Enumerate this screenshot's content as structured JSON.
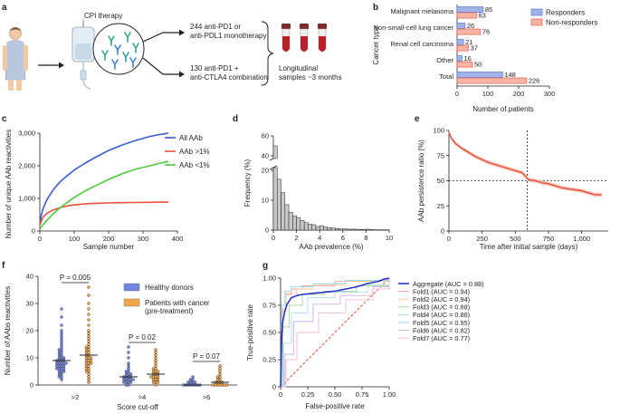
{
  "panel_a": {
    "letter": "a",
    "therapy": "CPI therapy",
    "arm1_line1": "244 anti-PD1 or",
    "arm1_line2": "anti-PDL1 monotherapy",
    "arm2_line1": "130 anti-PD1 +",
    "arm2_line2": "anti-CTLA4 combination",
    "samples_line1": "Longitudinal",
    "samples_line2": "samples ~3 months"
  },
  "colors": {
    "responders": "#9fb3e8",
    "responders_edge": "#5b7bd5",
    "nonresponders": "#f6b4a4",
    "nonresponders_edge": "#e8604c",
    "all_aab": "#3a5bd9",
    "aab_gt1": "#e8503a",
    "aab_lt1": "#4ccc3a",
    "healthy": "#6f86e0",
    "cancer": "#f3a646",
    "aggregate": "#2b34c8"
  },
  "chart_data": [
    {
      "id": "b",
      "letter": "b",
      "type": "bar",
      "categories": [
        "Malignant melanoma",
        "Non-small-cell lung cancer",
        "Renal cell carcinoma",
        "Other",
        "Total"
      ],
      "series": [
        {
          "name": "Responders",
          "values": [
            85,
            26,
            21,
            16,
            148
          ]
        },
        {
          "name": "Non-responders",
          "values": [
            63,
            76,
            37,
            50,
            226
          ]
        }
      ],
      "xlabel": "Number of patients",
      "ylabel": "Cancer type",
      "xlim": [
        0,
        300
      ],
      "xticks": [
        "0",
        "100",
        "200",
        "300"
      ],
      "legend": "top-right"
    },
    {
      "id": "c",
      "letter": "c",
      "type": "line",
      "xlabel": "Sample number",
      "ylabel": "Number of unique AAb reactivities",
      "xlim": [
        0,
        400
      ],
      "ylim": [
        0,
        3000
      ],
      "xticks": [
        "0",
        "100",
        "200",
        "300",
        "400"
      ],
      "yticks": [
        "0",
        "1,000",
        "2,000",
        "3,000"
      ],
      "series": [
        {
          "name": "All AAb",
          "x": [
            1,
            5,
            10,
            20,
            40,
            60,
            80,
            100,
            130,
            160,
            200,
            240,
            280,
            320,
            350,
            374
          ],
          "y": [
            300,
            520,
            700,
            950,
            1280,
            1520,
            1700,
            1870,
            2070,
            2250,
            2470,
            2640,
            2780,
            2900,
            2960,
            3000
          ]
        },
        {
          "name": "AAb >1%",
          "x": [
            1,
            5,
            10,
            20,
            40,
            60,
            80,
            100,
            130,
            160,
            200,
            240,
            280,
            320,
            374
          ],
          "y": [
            200,
            330,
            430,
            540,
            650,
            720,
            770,
            800,
            830,
            850,
            860,
            870,
            875,
            880,
            885
          ]
        },
        {
          "name": "AAb <1%",
          "x": [
            1,
            10,
            20,
            40,
            60,
            80,
            100,
            130,
            160,
            200,
            240,
            280,
            320,
            350,
            374
          ],
          "y": [
            80,
            200,
            320,
            540,
            720,
            880,
            1030,
            1220,
            1380,
            1580,
            1760,
            1900,
            2000,
            2080,
            2130
          ]
        }
      ],
      "legend": "top-right"
    },
    {
      "id": "d",
      "letter": "d",
      "type": "bar",
      "xlabel": "AAb prevalence (%)",
      "ylabel": "Frequency (%)",
      "xlim": [
        0,
        10
      ],
      "ylim_lower": [
        0,
        20
      ],
      "ylim_upper": [
        40,
        60
      ],
      "xticks": [
        "0",
        "2",
        "4",
        "6",
        "8",
        "10"
      ],
      "yticks_lower": [
        "0",
        "10",
        "20"
      ],
      "yticks_upper": [
        "40",
        "60"
      ],
      "bins": [
        0,
        0.33,
        0.67,
        1.0,
        1.33,
        1.67,
        2.0,
        2.33,
        2.67,
        3.0,
        3.33,
        3.67,
        4.0,
        4.33,
        4.67,
        5.0,
        5.33,
        5.67,
        6.0,
        6.33,
        6.67,
        7.0,
        7.33,
        7.67,
        8.0,
        8.33,
        8.67,
        9.0,
        9.33,
        9.67
      ],
      "values": [
        50,
        17,
        12.5,
        8.5,
        6,
        4.8,
        4.2,
        3.2,
        2.5,
        2,
        1.8,
        1.2,
        1.5,
        1,
        0.8,
        0.7,
        0.5,
        0.4,
        0.4,
        0.3,
        0.3,
        0.3,
        0.2,
        0.2,
        0.3,
        0.2,
        0.1,
        0.1,
        0.1,
        0.1
      ]
    },
    {
      "id": "e",
      "letter": "e",
      "type": "line",
      "xlabel": "Time after initial sample (days)",
      "ylabel": "AAb persistence ratio (%)",
      "xlim": [
        0,
        1200
      ],
      "ylim": [
        0,
        100
      ],
      "xticks": [
        "0",
        "250",
        "500",
        "750",
        "1,000"
      ],
      "yticks": [
        "0",
        "25",
        "50",
        "75",
        "100"
      ],
      "vline": 590,
      "hline": 50,
      "series": [
        {
          "name": "",
          "x": [
            0,
            20,
            50,
            100,
            150,
            200,
            250,
            300,
            350,
            400,
            450,
            500,
            550,
            580,
            600,
            650,
            700,
            750,
            800,
            850,
            900,
            950,
            1000,
            1050,
            1100,
            1150
          ],
          "y": [
            98,
            92,
            87,
            82,
            78,
            74,
            71,
            68,
            66,
            64,
            62,
            60,
            58,
            54,
            51,
            50,
            48,
            47,
            45,
            43,
            42,
            41,
            40,
            38,
            36,
            36
          ]
        }
      ]
    },
    {
      "id": "f",
      "letter": "f",
      "type": "scatter",
      "xlabel": "Score cut-off",
      "ylabel": "Number of AAbs reactivities",
      "ylim": [
        0,
        40
      ],
      "yticks": [
        "0",
        "10",
        "20",
        "30",
        "40"
      ],
      "categories": [
        ">2",
        ">4",
        ">6"
      ],
      "series": [
        {
          "name": "Healthy donors",
          "values": [
            [
              2,
              3,
              3,
              4,
              4,
              5,
              5,
              5,
              6,
              6,
              6,
              6,
              7,
              7,
              7,
              7,
              8,
              8,
              8,
              8,
              8,
              9,
              9,
              9,
              9,
              10,
              10,
              10,
              11,
              11,
              12,
              12,
              13,
              13,
              14,
              15,
              16,
              17,
              18,
              19,
              20,
              22,
              25,
              28
            ],
            [
              0,
              0,
              1,
              1,
              1,
              1,
              2,
              2,
              2,
              2,
              2,
              3,
              3,
              3,
              3,
              4,
              4,
              4,
              5,
              5,
              6,
              7,
              8,
              10,
              12,
              14
            ],
            [
              0,
              0,
              0,
              0,
              0,
              0,
              0,
              0,
              1,
              1,
              1,
              1,
              2,
              2,
              3
            ]
          ]
        },
        {
          "name": "Patients with cancer\n(pre-treatment)",
          "values": [
            [
              1,
              2,
              3,
              4,
              5,
              5,
              6,
              6,
              7,
              7,
              8,
              8,
              8,
              9,
              9,
              9,
              10,
              10,
              10,
              11,
              11,
              12,
              12,
              13,
              13,
              14,
              14,
              15,
              16,
              17,
              18,
              19,
              20,
              22,
              24,
              26,
              28,
              30,
              33,
              36
            ],
            [
              0,
              1,
              1,
              1,
              2,
              2,
              2,
              3,
              3,
              3,
              3,
              4,
              4,
              4,
              5,
              5,
              5,
              6,
              6,
              7,
              8,
              9,
              10,
              11,
              12,
              13
            ],
            [
              0,
              0,
              0,
              0,
              0,
              0,
              0,
              1,
              1,
              1,
              1,
              2,
              2,
              3,
              3,
              4,
              5,
              6,
              7
            ]
          ]
        }
      ],
      "pvalues": [
        "P = 0.005",
        "P = 0.02",
        "P = 0.07"
      ]
    },
    {
      "id": "g",
      "letter": "g",
      "type": "line",
      "xlabel": "False-positive rate",
      "ylabel": "True-positive rate",
      "xlim": [
        0,
        1
      ],
      "ylim": [
        0,
        1
      ],
      "xticks": [
        "0",
        "0.25",
        "0.50",
        "0.75",
        "1.00"
      ],
      "yticks": [
        "0",
        "0.25",
        "0.50",
        "0.75",
        "1.00"
      ],
      "series": [
        {
          "name": "Aggregate (AUC = 0.88)",
          "color": "#2b34c8",
          "x": [
            0,
            0.01,
            0.02,
            0.04,
            0.06,
            0.1,
            0.15,
            0.2,
            0.3,
            0.4,
            0.5,
            0.6,
            0.7,
            0.8,
            0.9,
            0.95,
            1
          ],
          "y": [
            0,
            0.45,
            0.6,
            0.7,
            0.76,
            0.82,
            0.84,
            0.85,
            0.86,
            0.87,
            0.88,
            0.9,
            0.92,
            0.95,
            0.97,
            0.99,
            1
          ]
        },
        {
          "name": "Fold1 (AUC = 0.94)",
          "color": "#f2a3a3",
          "x": [
            0,
            0.01,
            0.05,
            0.1,
            0.2,
            0.5,
            1
          ],
          "y": [
            0,
            0.7,
            0.85,
            0.9,
            0.93,
            0.97,
            1
          ]
        },
        {
          "name": "Fold2 (AUC = 0.94)",
          "color": "#f7c99a",
          "x": [
            0,
            0.02,
            0.05,
            0.15,
            0.3,
            0.6,
            1
          ],
          "y": [
            0,
            0.72,
            0.86,
            0.9,
            0.94,
            0.97,
            1
          ]
        },
        {
          "name": "Fold3 (AUC = 0.88)",
          "color": "#a8d9a0",
          "x": [
            0,
            0.02,
            0.08,
            0.2,
            0.4,
            0.7,
            1
          ],
          "y": [
            0,
            0.55,
            0.75,
            0.85,
            0.88,
            0.93,
            1
          ]
        },
        {
          "name": "Fold4 (AUC = 0.86)",
          "color": "#a8dde8",
          "x": [
            0,
            0.03,
            0.1,
            0.25,
            0.5,
            0.8,
            1
          ],
          "y": [
            0,
            0.4,
            0.68,
            0.82,
            0.87,
            0.94,
            1
          ]
        },
        {
          "name": "Fold5 (AUC = 0.95)",
          "color": "#8fd8f0",
          "x": [
            0,
            0.01,
            0.04,
            0.1,
            0.3,
            0.6,
            1
          ],
          "y": [
            0,
            0.75,
            0.88,
            0.92,
            0.95,
            0.98,
            1
          ]
        },
        {
          "name": "Fold6 (AUC = 0.82)",
          "color": "#c9b0e6",
          "x": [
            0,
            0.04,
            0.12,
            0.3,
            0.55,
            0.85,
            1
          ],
          "y": [
            0,
            0.3,
            0.6,
            0.76,
            0.84,
            0.92,
            1
          ]
        },
        {
          "name": "Fold7 (AUC = 0.77)",
          "color": "#f4b8d6",
          "x": [
            0,
            0.05,
            0.15,
            0.35,
            0.6,
            0.85,
            1
          ],
          "y": [
            0,
            0.25,
            0.5,
            0.68,
            0.8,
            0.9,
            1
          ]
        }
      ],
      "diagonal": true
    }
  ]
}
